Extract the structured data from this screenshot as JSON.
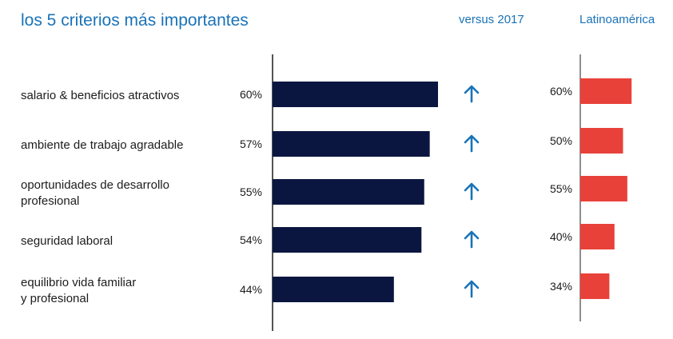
{
  "header": {
    "title": "los 5 criterios más importantes",
    "versus_label": "versus 2017",
    "region_label": "Latinoamérica"
  },
  "colors": {
    "main_bar": "#0b1640",
    "region_bar": "#e8413a",
    "arrow": "#1a73b8",
    "axis": "#1c1c1c"
  },
  "chart_data": {
    "type": "bar",
    "orientation": "horizontal",
    "title": "los 5 criterios más importantes",
    "categories": [
      "salario & beneficios atractivos",
      "ambiente de trabajo agradable",
      "oportunidades de desarrollo profesional",
      "seguridad laboral",
      "equilibrio vida familiar y profesional"
    ],
    "category_lines": [
      [
        "salario & beneficios atractivos"
      ],
      [
        "ambiente de trabajo agradable"
      ],
      [
        "oportunidades de desarrollo",
        "profesional"
      ],
      [
        "seguridad laboral"
      ],
      [
        "equilibrio vida familiar",
        "y profesional"
      ]
    ],
    "series": [
      {
        "name": "",
        "values": [
          60,
          57,
          55,
          54,
          44
        ],
        "labels": [
          "60%",
          "57%",
          "55%",
          "54%",
          "44%"
        ]
      },
      {
        "name": "Latinoamérica",
        "values": [
          60,
          50,
          55,
          40,
          34
        ],
        "labels": [
          "60%",
          "50%",
          "55%",
          "40%",
          "34%"
        ]
      }
    ],
    "versus_2017": [
      "up",
      "up",
      "up",
      "up",
      "up"
    ],
    "xlim": [
      0,
      100
    ],
    "grid": false,
    "legend": "none"
  }
}
